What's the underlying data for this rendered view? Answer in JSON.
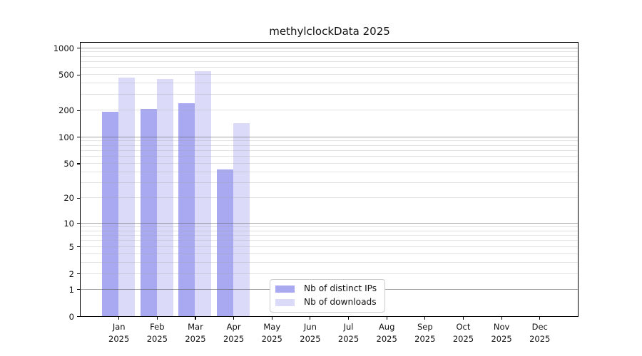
{
  "title": "methylclockData 2025",
  "chart_data": {
    "type": "bar",
    "title": "methylclockData 2025",
    "xlabel": "",
    "ylabel": "",
    "year_label": "2025",
    "categories": [
      "Jan",
      "Feb",
      "Mar",
      "Apr",
      "May",
      "Jun",
      "Jul",
      "Aug",
      "Sep",
      "Oct",
      "Nov",
      "Dec"
    ],
    "series": [
      {
        "name": "Nb of distinct IPs",
        "color": "#a9a9f1",
        "values": [
          193,
          208,
          240,
          43,
          null,
          null,
          null,
          null,
          null,
          null,
          null,
          null
        ]
      },
      {
        "name": "Nb of downloads",
        "color": "#dbdbf9",
        "values": [
          465,
          448,
          545,
          142,
          null,
          null,
          null,
          null,
          null,
          null,
          null,
          null
        ]
      }
    ],
    "y_ticks": [
      0,
      1,
      2,
      5,
      10,
      20,
      50,
      100,
      200,
      500,
      1000
    ],
    "y_scale": "log1p",
    "ylim": [
      0,
      1130
    ],
    "grid": "horizontal-minor-and-major-decades",
    "legend_position": "bottom-center-inside",
    "colors": {
      "major_gridline": "#9d9d9d",
      "minor_gridline": "#e2e2e2",
      "axis_spine": "#000000",
      "background": "#ffffff"
    }
  }
}
